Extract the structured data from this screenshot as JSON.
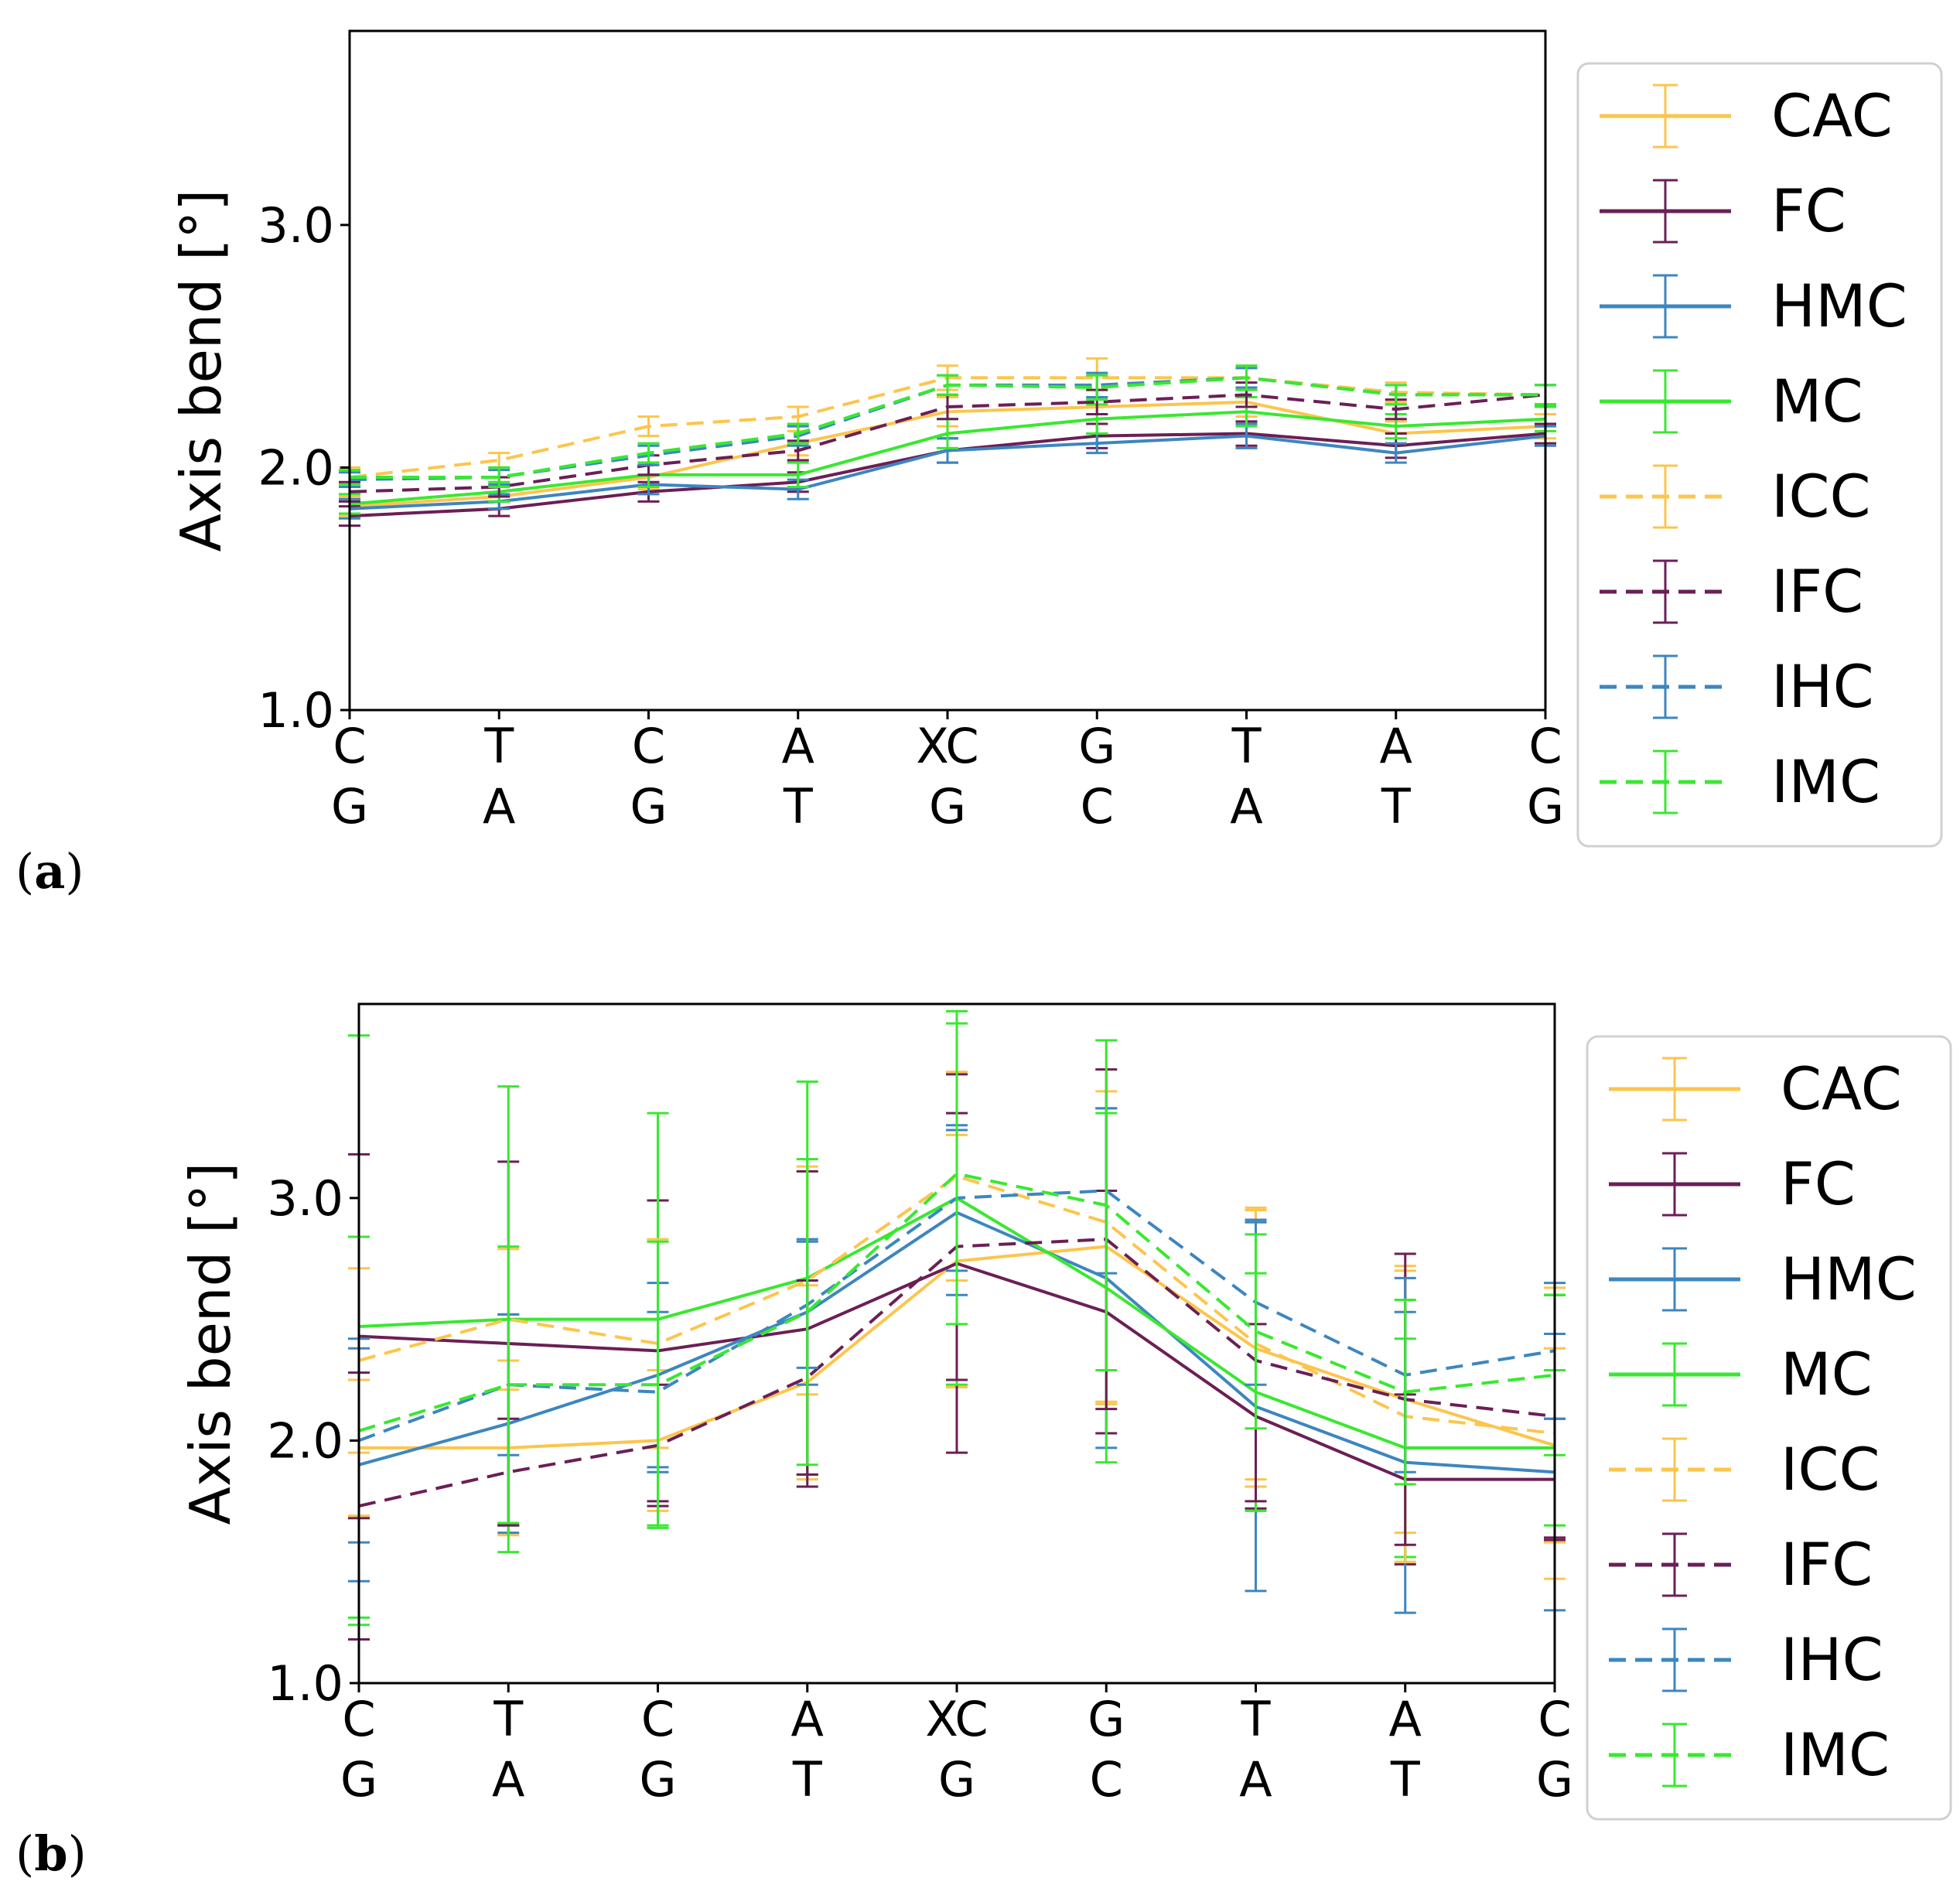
{
  "figure": {
    "panel_labels": [
      "(",
      "a",
      ")",
      "(",
      "b",
      ")"
    ]
  },
  "legend": {
    "entries": [
      {
        "name": "CAC",
        "color": "#fcc54c",
        "dash": false
      },
      {
        "name": "FC",
        "color": "#6b1f55",
        "dash": false
      },
      {
        "name": "HMC",
        "color": "#3d86c0",
        "dash": false
      },
      {
        "name": "MC",
        "color": "#39e830",
        "dash": false
      },
      {
        "name": "ICC",
        "color": "#fcc54c",
        "dash": true
      },
      {
        "name": "IFC",
        "color": "#6b1f55",
        "dash": true
      },
      {
        "name": "IHC",
        "color": "#3d86c0",
        "dash": true
      },
      {
        "name": "IMC",
        "color": "#39e830",
        "dash": true
      }
    ]
  },
  "chart_data": [
    {
      "type": "line",
      "panel": "a",
      "title": "",
      "xlabel": "",
      "ylabel": "Axis bend [°]",
      "ylim": [
        1.0,
        3.8
      ],
      "yticks": [
        1.0,
        2.0,
        3.0
      ],
      "ytick_labels": [
        "1.0",
        "2.0",
        "3.0"
      ],
      "categories_top": [
        "C",
        "T",
        "C",
        "A",
        "XC",
        "G",
        "T",
        "A",
        "C"
      ],
      "categories_bottom": [
        "G",
        "A",
        "G",
        "T",
        "G",
        "C",
        "A",
        "T",
        "G"
      ],
      "series": [
        {
          "name": "CAC",
          "values": [
            1.84,
            1.88,
            1.96,
            2.1,
            2.23,
            2.25,
            2.27,
            2.14,
            2.17
          ],
          "err": [
            0.04,
            0.05,
            0.05,
            0.05,
            0.06,
            0.07,
            0.06,
            0.05,
            0.05
          ]
        },
        {
          "name": "FC",
          "values": [
            1.8,
            1.83,
            1.9,
            1.94,
            2.07,
            2.13,
            2.14,
            2.09,
            2.14
          ],
          "err": [
            0.04,
            0.03,
            0.04,
            0.04,
            0.05,
            0.05,
            0.05,
            0.05,
            0.04
          ]
        },
        {
          "name": "HMC",
          "values": [
            1.83,
            1.86,
            1.93,
            1.91,
            2.07,
            2.1,
            2.13,
            2.06,
            2.13
          ],
          "err": [
            0.04,
            0.03,
            0.04,
            0.04,
            0.05,
            0.04,
            0.05,
            0.04,
            0.04
          ]
        },
        {
          "name": "MC",
          "values": [
            1.85,
            1.9,
            1.97,
            1.97,
            2.14,
            2.2,
            2.23,
            2.17,
            2.2
          ],
          "err": [
            0.04,
            0.04,
            0.05,
            0.05,
            0.06,
            0.06,
            0.06,
            0.05,
            0.05
          ]
        },
        {
          "name": "ICC",
          "values": [
            1.96,
            2.03,
            2.17,
            2.21,
            2.37,
            2.37,
            2.37,
            2.31,
            2.3
          ],
          "err": [
            0.04,
            0.03,
            0.04,
            0.04,
            0.05,
            0.08,
            0.05,
            0.04,
            0.04
          ]
        },
        {
          "name": "IFC",
          "values": [
            1.9,
            1.92,
            2.01,
            2.07,
            2.25,
            2.27,
            2.3,
            2.24,
            2.3
          ],
          "err": [
            0.04,
            0.04,
            0.04,
            0.04,
            0.05,
            0.05,
            0.05,
            0.04,
            0.04
          ]
        },
        {
          "name": "IHC",
          "values": [
            1.95,
            1.96,
            2.05,
            2.13,
            2.34,
            2.34,
            2.37,
            2.3,
            2.3
          ],
          "err": [
            0.03,
            0.03,
            0.04,
            0.04,
            0.04,
            0.05,
            0.04,
            0.04,
            0.04
          ]
        },
        {
          "name": "IMC",
          "values": [
            1.96,
            1.96,
            2.06,
            2.14,
            2.34,
            2.33,
            2.37,
            2.3,
            2.3
          ],
          "err": [
            0.03,
            0.04,
            0.04,
            0.04,
            0.04,
            0.05,
            0.05,
            0.04,
            0.04
          ]
        }
      ]
    },
    {
      "type": "line",
      "panel": "b",
      "title": "",
      "xlabel": "",
      "ylabel": "Axis bend [°]",
      "ylim": [
        1.0,
        3.8
      ],
      "yticks": [
        1.0,
        2.0,
        3.0
      ],
      "ytick_labels": [
        "1.0",
        "2.0",
        "3.0"
      ],
      "categories_top": [
        "C",
        "T",
        "C",
        "A",
        "XC",
        "G",
        "T",
        "A",
        "C"
      ],
      "categories_bottom": [
        "G",
        "A",
        "G",
        "T",
        "G",
        "C",
        "A",
        "T",
        "G"
      ],
      "series": [
        {
          "name": "CAC",
          "values": [
            1.97,
            1.97,
            2.0,
            2.24,
            2.74,
            2.8,
            2.38,
            2.17,
            1.98
          ],
          "err": [
            0.28,
            0.36,
            0.29,
            0.4,
            0.52,
            0.64,
            0.57,
            0.55,
            0.4
          ]
        },
        {
          "name": "FC",
          "values": [
            2.43,
            2.4,
            2.37,
            2.46,
            2.73,
            2.53,
            2.1,
            1.84,
            1.84
          ],
          "err": [
            0.75,
            0.75,
            0.62,
            0.65,
            0.78,
            0.5,
            0.38,
            0.35,
            0.25
          ]
        },
        {
          "name": "HMC",
          "values": [
            1.9,
            2.07,
            2.27,
            2.53,
            2.94,
            2.67,
            2.14,
            1.91,
            1.87
          ],
          "err": [
            0.48,
            0.45,
            0.38,
            0.3,
            0.34,
            0.7,
            0.76,
            0.62,
            0.57
          ]
        },
        {
          "name": "MC",
          "values": [
            2.47,
            2.5,
            2.5,
            2.67,
            3.0,
            2.63,
            2.2,
            1.97,
            1.97
          ],
          "err": [
            1.2,
            0.96,
            0.85,
            0.81,
            0.77,
            0.72,
            0.49,
            0.45,
            0.32
          ]
        },
        {
          "name": "ICC",
          "values": [
            2.33,
            2.5,
            2.4,
            2.66,
            3.09,
            2.9,
            2.4,
            2.1,
            2.03
          ],
          "err": [
            0.38,
            0.29,
            0.43,
            0.47,
            0.43,
            0.75,
            0.56,
            0.6,
            0.6
          ]
        },
        {
          "name": "IFC",
          "values": [
            1.73,
            1.87,
            1.98,
            2.26,
            2.8,
            2.83,
            2.33,
            2.17,
            2.1
          ],
          "err": [
            0.55,
            0.22,
            0.25,
            0.4,
            0.55,
            0.7,
            0.58,
            0.6,
            0.5
          ]
        },
        {
          "name": "IHC",
          "values": [
            2.0,
            2.23,
            2.2,
            2.56,
            3.0,
            3.03,
            2.57,
            2.27,
            2.37
          ],
          "err": [
            0.42,
            0.29,
            0.33,
            0.26,
            0.3,
            0.34,
            0.34,
            0.4,
            0.28
          ]
        },
        {
          "name": "IMC",
          "values": [
            2.04,
            2.23,
            2.23,
            2.53,
            3.1,
            2.97,
            2.45,
            2.2,
            2.27
          ],
          "err": [
            0.8,
            0.57,
            0.59,
            0.63,
            0.62,
            0.68,
            0.4,
            0.38,
            0.33
          ]
        }
      ]
    }
  ]
}
